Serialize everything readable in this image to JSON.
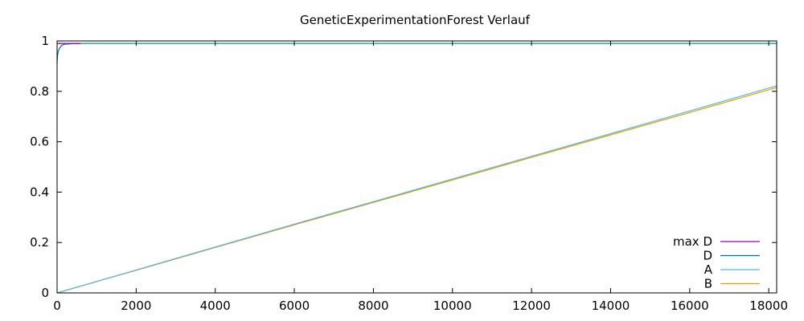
{
  "chart_data": {
    "type": "line",
    "title": "GeneticExperimentationForest Verlauf",
    "xlabel": "",
    "ylabel": "",
    "xlim": [
      0,
      18200
    ],
    "ylim": [
      0,
      1
    ],
    "xticks": [
      "0",
      "2000",
      "4000",
      "6000",
      "8000",
      "10000",
      "12000",
      "14000",
      "16000",
      "18000"
    ],
    "yticks": [
      "0",
      "0.2",
      "0.4",
      "0.6",
      "0.8",
      "1"
    ],
    "grid": false,
    "legend_position": "bottom-right",
    "series": [
      {
        "name": "max D",
        "color": "#9400d3",
        "x": [
          0,
          20,
          60,
          150,
          300,
          600
        ],
        "y": [
          0.99,
          0.99,
          0.99,
          0.99,
          0.99,
          0.99
        ]
      },
      {
        "name": "D",
        "color": "#00728f",
        "x": [
          0,
          10,
          30,
          60,
          100,
          150,
          200,
          300,
          400,
          600
        ],
        "y": [
          0.91,
          0.94,
          0.96,
          0.97,
          0.98,
          0.985,
          0.987,
          0.988,
          0.989,
          0.989
        ]
      },
      {
        "name": "A",
        "color": "#56b4e9",
        "x": [
          0,
          2000,
          4000,
          6000,
          8000,
          10000,
          12000,
          14000,
          16000,
          18200
        ],
        "y": [
          0.0,
          0.091,
          0.182,
          0.273,
          0.362,
          0.452,
          0.542,
          0.632,
          0.722,
          0.822
        ]
      },
      {
        "name": "B",
        "color": "#e69f00",
        "x": [
          0,
          2000,
          4000,
          6000,
          8000,
          10000,
          12000,
          14000,
          16000,
          18200
        ],
        "y": [
          0.0,
          0.09,
          0.18,
          0.27,
          0.359,
          0.448,
          0.538,
          0.627,
          0.716,
          0.815
        ]
      },
      {
        "name": "",
        "color": "#009e73",
        "x": [
          0,
          18200
        ],
        "y": [
          0.99,
          0.99
        ]
      }
    ]
  }
}
